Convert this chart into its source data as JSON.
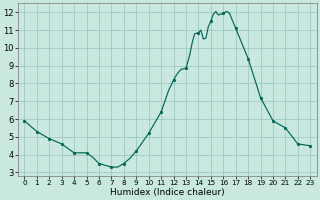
{
  "title": "",
  "xlabel": "Humidex (Indice chaleur)",
  "ylabel": "",
  "background_color": "#c8e8e0",
  "grid_color": "#a0c8c0",
  "line_color": "#006655",
  "marker_color": "#006655",
  "xlim": [
    -0.5,
    23.5
  ],
  "ylim": [
    2.8,
    12.5
  ],
  "yticks": [
    3,
    4,
    5,
    6,
    7,
    8,
    9,
    10,
    11,
    12
  ],
  "xticks": [
    0,
    1,
    2,
    3,
    4,
    5,
    6,
    7,
    8,
    9,
    10,
    11,
    12,
    13,
    14,
    15,
    16,
    17,
    18,
    19,
    20,
    21,
    22,
    23
  ],
  "x": [
    0,
    1,
    2,
    3,
    4,
    5,
    5.5,
    6,
    6.5,
    7,
    7.5,
    8,
    8.5,
    9,
    9.5,
    10,
    10.5,
    11,
    11.3,
    11.6,
    12,
    12.3,
    12.6,
    13,
    13.3,
    13.5,
    13.7,
    14,
    14.2,
    14.4,
    14.6,
    14.8,
    15,
    15.2,
    15.4,
    15.6,
    16,
    16.3,
    16.5,
    17,
    18,
    19,
    20,
    21,
    22,
    23
  ],
  "y": [
    5.9,
    5.3,
    4.9,
    4.6,
    4.1,
    4.1,
    3.85,
    3.5,
    3.4,
    3.3,
    3.3,
    3.5,
    3.8,
    4.2,
    4.7,
    5.2,
    5.8,
    6.4,
    7.0,
    7.6,
    8.2,
    8.55,
    8.8,
    8.85,
    9.6,
    10.3,
    10.8,
    10.85,
    11.0,
    10.5,
    10.55,
    11.2,
    11.5,
    11.9,
    12.05,
    11.85,
    11.95,
    12.05,
    11.95,
    11.1,
    9.4,
    7.2,
    5.9,
    5.5,
    4.6,
    4.5
  ],
  "marker_x": [
    0,
    1,
    2,
    3,
    4,
    5,
    6,
    7,
    8,
    9,
    10,
    11,
    12,
    13,
    14,
    15,
    16,
    17,
    18,
    19,
    20,
    21,
    22,
    23
  ],
  "marker_y": [
    5.9,
    5.3,
    4.9,
    4.6,
    4.1,
    4.1,
    3.5,
    3.3,
    3.5,
    4.2,
    5.2,
    6.4,
    8.2,
    8.85,
    10.85,
    11.5,
    11.95,
    11.1,
    9.4,
    7.2,
    5.9,
    5.5,
    4.6,
    4.5
  ],
  "xlabel_fontsize": 6.5,
  "tick_fontsize_x": 5.2,
  "tick_fontsize_y": 6.0
}
